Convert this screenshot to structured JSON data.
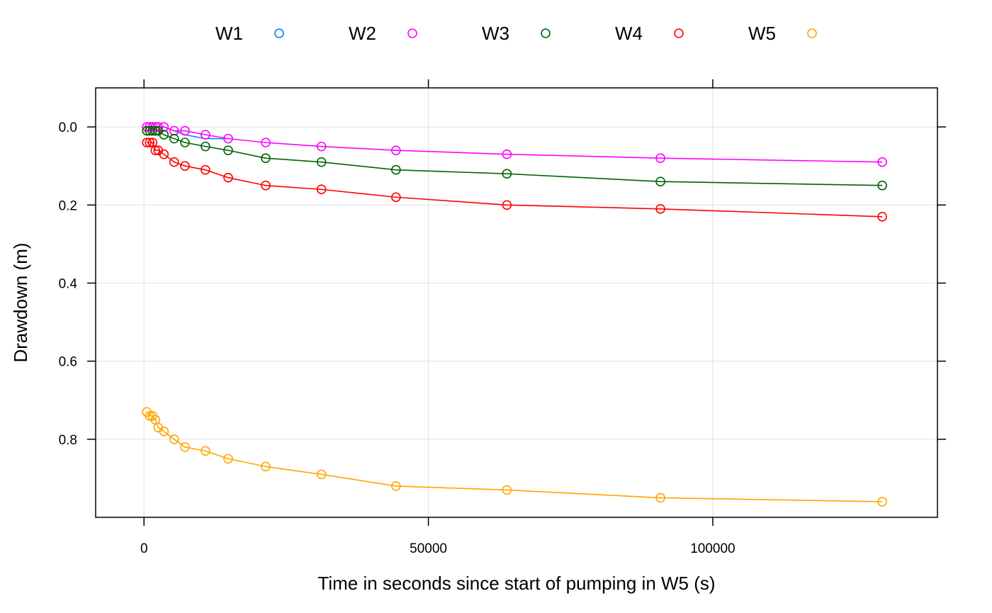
{
  "chart_data": {
    "type": "line",
    "xlabel": "Time in seconds since start of pumping in W5 (s)",
    "ylabel": "Drawdown (m)",
    "xlim": [
      -8500,
      139500
    ],
    "ylim": [
      1.0,
      -0.1
    ],
    "y_reversed": true,
    "x_ticks": [
      0,
      50000,
      100000
    ],
    "x_tick_labels": [
      "0",
      "50000",
      "100000"
    ],
    "y_ticks": [
      0.0,
      0.2,
      0.4,
      0.6,
      0.8
    ],
    "y_tick_labels": [
      "0.0",
      "0.2",
      "0.4",
      "0.6",
      "0.8"
    ],
    "grid": true,
    "legend_position": "top",
    "series": [
      {
        "name": "W1",
        "color": "#0080ff",
        "x": [
          500,
          1000,
          1500,
          2000,
          2500,
          3500,
          5300,
          7200,
          10800,
          14800
        ],
        "y": [
          0.0,
          0.0,
          0.0,
          0.0,
          0.0,
          0.0,
          0.01,
          0.02,
          0.03,
          0.03
        ],
        "show_markers": false
      },
      {
        "name": "W2",
        "color": "#ff00ff",
        "x": [
          500,
          1000,
          1500,
          2000,
          2500,
          3500,
          5300,
          7200,
          10800,
          14800,
          21400,
          31200,
          44300,
          63800,
          90800,
          129800
        ],
        "y": [
          0.0,
          0.0,
          0.0,
          0.0,
          0.0,
          0.0,
          0.01,
          0.01,
          0.02,
          0.03,
          0.04,
          0.05,
          0.06,
          0.07,
          0.08,
          0.09
        ],
        "show_markers": true
      },
      {
        "name": "W3",
        "color": "#006400",
        "x": [
          500,
          1000,
          1500,
          2000,
          2500,
          3500,
          5300,
          7200,
          10800,
          14800,
          21400,
          31200,
          44300,
          63800,
          90800,
          129800
        ],
        "y": [
          0.01,
          0.01,
          0.01,
          0.01,
          0.01,
          0.02,
          0.03,
          0.04,
          0.05,
          0.06,
          0.08,
          0.09,
          0.11,
          0.12,
          0.14,
          0.15
        ],
        "show_markers": true
      },
      {
        "name": "W4",
        "color": "#ff0000",
        "x": [
          500,
          1000,
          1500,
          2000,
          2500,
          3500,
          5300,
          7200,
          10800,
          14800,
          21400,
          31200,
          44300,
          63800,
          90800,
          129800
        ],
        "y": [
          0.04,
          0.04,
          0.04,
          0.06,
          0.06,
          0.07,
          0.09,
          0.1,
          0.11,
          0.13,
          0.15,
          0.16,
          0.18,
          0.2,
          0.21,
          0.23
        ],
        "show_markers": true
      },
      {
        "name": "W5",
        "color": "#ffa500",
        "x": [
          500,
          1000,
          1500,
          2000,
          2500,
          3500,
          5300,
          7200,
          10800,
          14800,
          21400,
          31200,
          44300,
          63800,
          90800,
          129800
        ],
        "y": [
          0.73,
          0.74,
          0.74,
          0.75,
          0.77,
          0.78,
          0.8,
          0.82,
          0.83,
          0.85,
          0.87,
          0.89,
          0.92,
          0.93,
          0.95,
          0.96
        ],
        "show_markers": true
      }
    ]
  }
}
